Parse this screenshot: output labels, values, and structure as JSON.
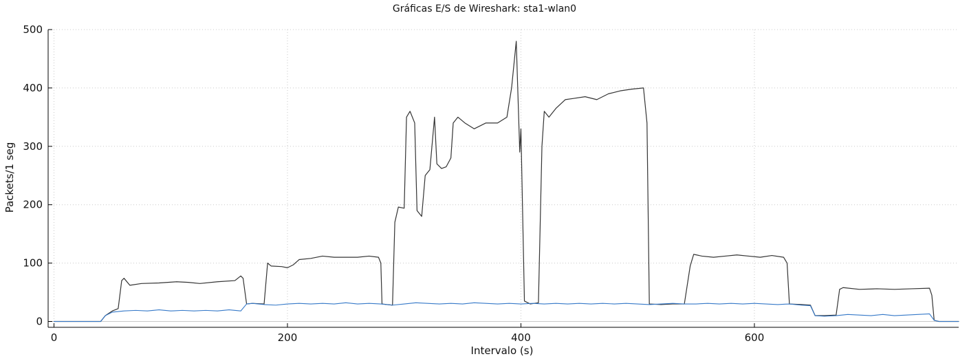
{
  "chart_data": {
    "type": "line",
    "title": "Gráficas E/S de Wireshark: sta1-wlan0",
    "xlabel": "Intervalo (s)",
    "ylabel": "Packets/1 seg",
    "xlim": [
      -5,
      775
    ],
    "ylim": [
      -10,
      500
    ],
    "x_ticks": [
      0,
      200,
      400,
      600
    ],
    "y_ticks": [
      0,
      100,
      200,
      300,
      400,
      500
    ],
    "grid": true,
    "legend": "none",
    "colors": {
      "series1": "#333333",
      "series2": "#3478c8",
      "grid": "#c8c8c8",
      "axis": "#000000"
    },
    "series": [
      {
        "line_color": "#333333",
        "points": [
          [
            0,
            0
          ],
          [
            40,
            0
          ],
          [
            44,
            10
          ],
          [
            50,
            18
          ],
          [
            55,
            22
          ],
          [
            58,
            70
          ],
          [
            60,
            74
          ],
          [
            65,
            62
          ],
          [
            75,
            65
          ],
          [
            90,
            66
          ],
          [
            105,
            68
          ],
          [
            115,
            67
          ],
          [
            125,
            65
          ],
          [
            140,
            68
          ],
          [
            155,
            70
          ],
          [
            160,
            78
          ],
          [
            162,
            74
          ],
          [
            165,
            30
          ],
          [
            170,
            31
          ],
          [
            180,
            30
          ],
          [
            183,
            100
          ],
          [
            186,
            95
          ],
          [
            195,
            94
          ],
          [
            200,
            92
          ],
          [
            205,
            97
          ],
          [
            210,
            106
          ],
          [
            220,
            108
          ],
          [
            230,
            112
          ],
          [
            240,
            110
          ],
          [
            250,
            110
          ],
          [
            260,
            110
          ],
          [
            270,
            112
          ],
          [
            278,
            110
          ],
          [
            280,
            100
          ],
          [
            281,
            30
          ],
          [
            285,
            29
          ],
          [
            290,
            28
          ],
          [
            292,
            170
          ],
          [
            295,
            196
          ],
          [
            300,
            194
          ],
          [
            302,
            350
          ],
          [
            305,
            360
          ],
          [
            309,
            340
          ],
          [
            311,
            190
          ],
          [
            315,
            180
          ],
          [
            318,
            250
          ],
          [
            322,
            260
          ],
          [
            326,
            350
          ],
          [
            328,
            270
          ],
          [
            332,
            262
          ],
          [
            336,
            265
          ],
          [
            340,
            280
          ],
          [
            342,
            340
          ],
          [
            346,
            350
          ],
          [
            352,
            340
          ],
          [
            360,
            330
          ],
          [
            370,
            340
          ],
          [
            380,
            340
          ],
          [
            388,
            350
          ],
          [
            392,
            400
          ],
          [
            396,
            480
          ],
          [
            399,
            290
          ],
          [
            400,
            330
          ],
          [
            403,
            35
          ],
          [
            408,
            30
          ],
          [
            415,
            32
          ],
          [
            418,
            300
          ],
          [
            420,
            360
          ],
          [
            424,
            350
          ],
          [
            430,
            365
          ],
          [
            438,
            380
          ],
          [
            445,
            382
          ],
          [
            455,
            385
          ],
          [
            465,
            380
          ],
          [
            475,
            390
          ],
          [
            485,
            395
          ],
          [
            495,
            398
          ],
          [
            505,
            400
          ],
          [
            508,
            340
          ],
          [
            510,
            30
          ],
          [
            520,
            29
          ],
          [
            530,
            30
          ],
          [
            540,
            30
          ],
          [
            545,
            95
          ],
          [
            548,
            115
          ],
          [
            555,
            112
          ],
          [
            565,
            110
          ],
          [
            575,
            112
          ],
          [
            585,
            114
          ],
          [
            595,
            112
          ],
          [
            605,
            110
          ],
          [
            615,
            113
          ],
          [
            625,
            110
          ],
          [
            628,
            100
          ],
          [
            630,
            30
          ],
          [
            640,
            29
          ],
          [
            648,
            28
          ],
          [
            652,
            10
          ],
          [
            660,
            10
          ],
          [
            670,
            11
          ],
          [
            673,
            55
          ],
          [
            676,
            58
          ],
          [
            690,
            55
          ],
          [
            705,
            56
          ],
          [
            720,
            55
          ],
          [
            735,
            56
          ],
          [
            750,
            57
          ],
          [
            752,
            45
          ],
          [
            754,
            2
          ],
          [
            758,
            0
          ],
          [
            775,
            0
          ]
        ]
      },
      {
        "line_color": "#3478c8",
        "points": [
          [
            0,
            0
          ],
          [
            40,
            0
          ],
          [
            44,
            10
          ],
          [
            50,
            16
          ],
          [
            60,
            18
          ],
          [
            70,
            19
          ],
          [
            80,
            18
          ],
          [
            90,
            20
          ],
          [
            100,
            18
          ],
          [
            110,
            19
          ],
          [
            120,
            18
          ],
          [
            130,
            19
          ],
          [
            140,
            18
          ],
          [
            150,
            20
          ],
          [
            160,
            18
          ],
          [
            165,
            30
          ],
          [
            170,
            31
          ],
          [
            180,
            29
          ],
          [
            190,
            28
          ],
          [
            200,
            30
          ],
          [
            210,
            31
          ],
          [
            220,
            30
          ],
          [
            230,
            31
          ],
          [
            240,
            30
          ],
          [
            250,
            32
          ],
          [
            260,
            30
          ],
          [
            270,
            31
          ],
          [
            280,
            30
          ],
          [
            290,
            28
          ],
          [
            300,
            30
          ],
          [
            310,
            32
          ],
          [
            320,
            31
          ],
          [
            330,
            30
          ],
          [
            340,
            31
          ],
          [
            350,
            30
          ],
          [
            360,
            32
          ],
          [
            370,
            31
          ],
          [
            380,
            30
          ],
          [
            390,
            31
          ],
          [
            400,
            30
          ],
          [
            410,
            31
          ],
          [
            420,
            30
          ],
          [
            430,
            31
          ],
          [
            440,
            30
          ],
          [
            450,
            31
          ],
          [
            460,
            30
          ],
          [
            470,
            31
          ],
          [
            480,
            30
          ],
          [
            490,
            31
          ],
          [
            500,
            30
          ],
          [
            510,
            29
          ],
          [
            520,
            30
          ],
          [
            530,
            31
          ],
          [
            540,
            30
          ],
          [
            550,
            30
          ],
          [
            560,
            31
          ],
          [
            570,
            30
          ],
          [
            580,
            31
          ],
          [
            590,
            30
          ],
          [
            600,
            31
          ],
          [
            610,
            30
          ],
          [
            620,
            29
          ],
          [
            630,
            30
          ],
          [
            640,
            28
          ],
          [
            648,
            27
          ],
          [
            652,
            10
          ],
          [
            660,
            9
          ],
          [
            670,
            10
          ],
          [
            680,
            12
          ],
          [
            690,
            11
          ],
          [
            700,
            10
          ],
          [
            710,
            12
          ],
          [
            720,
            10
          ],
          [
            730,
            11
          ],
          [
            740,
            12
          ],
          [
            750,
            13
          ],
          [
            754,
            2
          ],
          [
            758,
            0
          ],
          [
            775,
            0
          ]
        ]
      }
    ]
  }
}
